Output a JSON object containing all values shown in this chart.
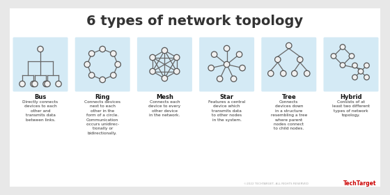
{
  "title": "6 types of network topology",
  "title_fontsize": 14,
  "bg_color": "#e8e8e8",
  "content_bg": "#ffffff",
  "box_color": "#d4eaf5",
  "node_face": "#f0f0f0",
  "node_edge": "#555555",
  "line_color": "#666666",
  "text_color": "#333333",
  "label_color": "#111111",
  "topologies": [
    {
      "name": "Bus",
      "desc": "Directly connects\ndevices to each\nother and\ntransmits data\nbetween links."
    },
    {
      "name": "Ring",
      "desc": "Connects devices\nnext to each\nother in the\nform of a circle.\nCommunication\noccurs unidirec-\ntionally or\nbidirectionally."
    },
    {
      "name": "Mesh",
      "desc": "Connects each\ndevice to every\nother device\nin the network."
    },
    {
      "name": "Star",
      "desc": "Features a central\ndevice which\ntransmits data\nto other nodes\nin the system."
    },
    {
      "name": "Tree",
      "desc": "Connects\ndevices down\nin a structure\nresembling a tree\nwhere parent\nnodes connect\nto child nodes."
    },
    {
      "name": "Hybrid",
      "desc": "Consists of at\nleast two different\ntypes of network\ntopology."
    }
  ],
  "footer": "©2022 TECHTARGET, ALL RIGHTS RESERVED",
  "footer_logo": "TechTarget"
}
